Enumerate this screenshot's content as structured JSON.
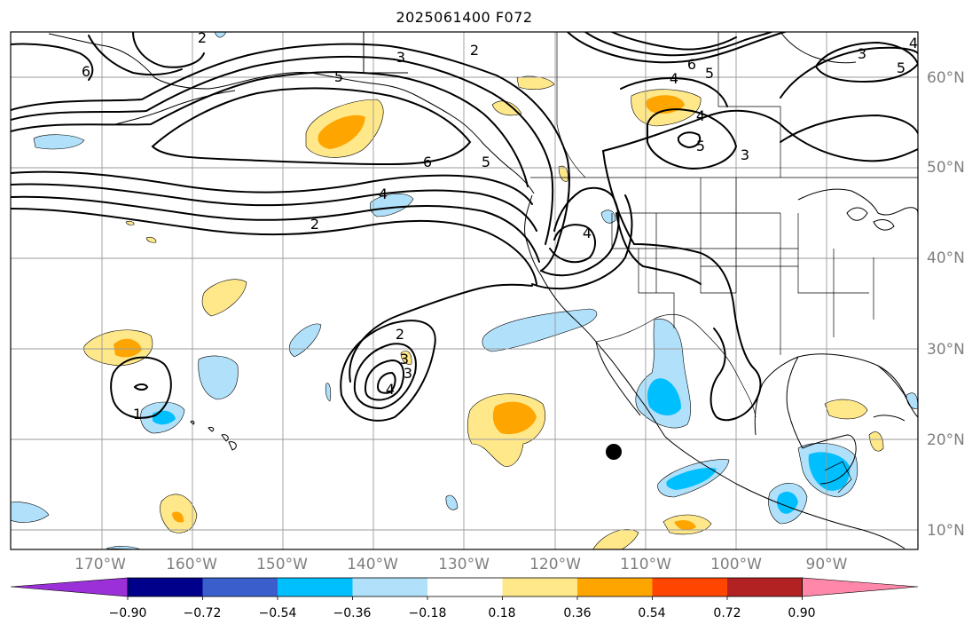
{
  "title": "2025061400 F072",
  "map": {
    "lon_labels": [
      "170°W",
      "160°W",
      "150°W",
      "140°W",
      "130°W",
      "120°W",
      "110°W",
      "100°W",
      "90°W"
    ],
    "lat_labels": [
      "60°N",
      "50°N",
      "40°N",
      "30°N",
      "20°N",
      "10°N"
    ],
    "contour_labels": [
      "2",
      "3",
      "2",
      "6",
      "5",
      "4",
      "5",
      "6",
      "4",
      "5",
      "3",
      "4",
      "3",
      "5",
      "5",
      "6",
      "4",
      "2",
      "4",
      "3",
      "2",
      "3",
      "4",
      "1"
    ]
  },
  "colorbar": {
    "tick_labels": [
      "−0.90",
      "−0.72",
      "−0.54",
      "−0.36",
      "−0.18",
      "0.18",
      "0.36",
      "0.54",
      "0.72",
      "0.90"
    ],
    "colors": {
      "under": "#9b30d9",
      "levels": [
        "#00008b",
        "#3a5fcd",
        "#00bfff",
        "#b0e0fa",
        "#ffffff",
        "#ffe88a",
        "#ffa500",
        "#ff4500",
        "#b22222",
        "#ff88aa"
      ]
    }
  }
}
